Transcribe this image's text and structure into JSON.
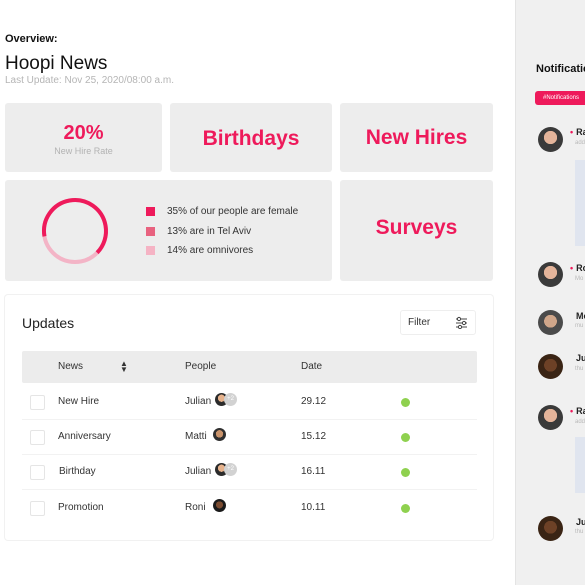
{
  "overview": {
    "label": "Overview:",
    "title": "Hoopi News",
    "last_update": "Last Update: Nov 25, 2020/08:00 a.m."
  },
  "cards": {
    "rate_value": "20%",
    "rate_label": "New Hire Rate",
    "birthdays": "Birthdays",
    "new_hires": "New Hires",
    "surveys": "Surveys"
  },
  "stats": {
    "donut_percent": 35,
    "legend": [
      {
        "text": "35% of our people are female",
        "color": "#ee1a5b"
      },
      {
        "text": "13% are in Tel Aviv",
        "color": "#e8627f"
      },
      {
        "text": "14% are omnivores",
        "color": "#f5b3c4"
      }
    ]
  },
  "updates": {
    "title": "Updates",
    "filter_label": "Filter",
    "columns": [
      "News",
      "People",
      "Date"
    ],
    "rows": [
      {
        "news": "New Hire",
        "people": "Julian",
        "extra": "+2",
        "date": "29.12"
      },
      {
        "news": "Anniversary",
        "people": "Matti",
        "extra": "",
        "date": "15.12"
      },
      {
        "news": "Birthday",
        "people": "Julian",
        "extra": "+2",
        "date": "16.11"
      },
      {
        "news": "Promotion",
        "people": "Roni",
        "extra": "",
        "date": "10.11"
      }
    ]
  },
  "notifications": {
    "title": "Notifications",
    "tag": "#Notifications",
    "items": [
      {
        "name": "Ra",
        "sub": "add"
      },
      {
        "name": "Ro",
        "sub": "Mo"
      },
      {
        "name": "Mo",
        "sub": "mu"
      },
      {
        "name": "Ju",
        "sub": "thu"
      },
      {
        "name": "Ra",
        "sub": "add"
      },
      {
        "name": "Ju",
        "sub": "thu"
      }
    ]
  },
  "colors": {
    "accent": "#ee1a5b",
    "status_dot": "#8fd14f"
  }
}
